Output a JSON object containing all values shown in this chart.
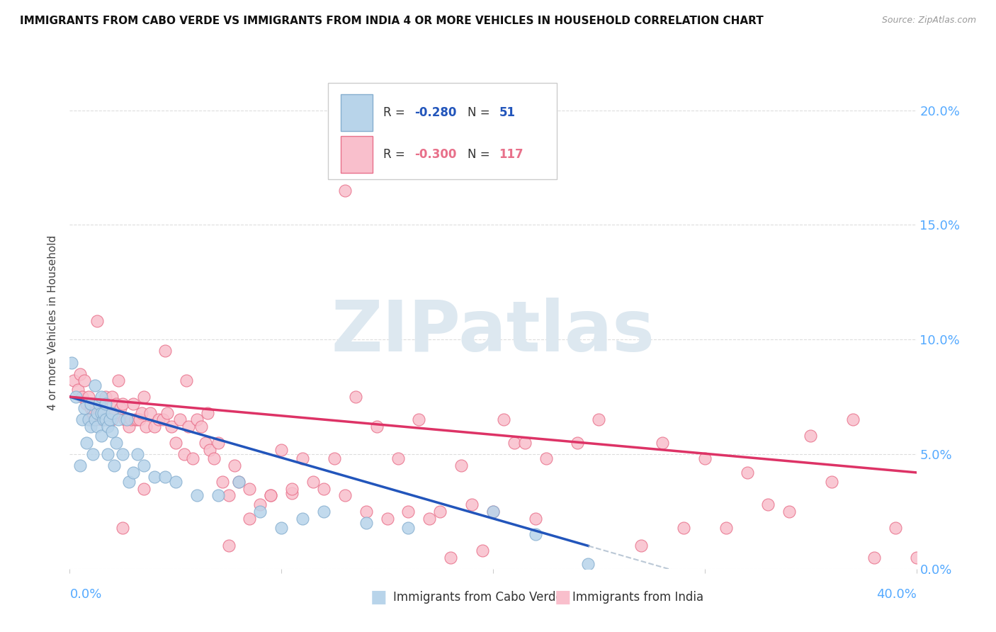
{
  "title": "IMMIGRANTS FROM CABO VERDE VS IMMIGRANTS FROM INDIA 4 OR MORE VEHICLES IN HOUSEHOLD CORRELATION CHART",
  "source": "Source: ZipAtlas.com",
  "ylabel": "4 or more Vehicles in Household",
  "ytick_values": [
    0.0,
    0.05,
    0.1,
    0.15,
    0.2
  ],
  "xlim": [
    0.0,
    0.4
  ],
  "ylim": [
    0.0,
    0.215
  ],
  "cabo_verde_color": "#b8d4ea",
  "cabo_verde_edge": "#85aecf",
  "india_color": "#f9bfcc",
  "india_edge": "#e8708a",
  "cabo_verde_R": -0.28,
  "cabo_verde_N": 51,
  "india_R": -0.3,
  "india_N": 117,
  "cabo_verde_line_color": "#2255bb",
  "india_line_color": "#dd3366",
  "watermark_text": "ZIPatlas",
  "cabo_verde_trend_x0": 0.0,
  "cabo_verde_trend_y0": 0.075,
  "cabo_verde_trend_x1": 0.245,
  "cabo_verde_trend_y1": 0.01,
  "india_trend_x0": 0.0,
  "india_trend_y0": 0.075,
  "india_trend_x1": 0.4,
  "india_trend_y1": 0.042,
  "cabo_verde_x": [
    0.001,
    0.003,
    0.005,
    0.006,
    0.007,
    0.008,
    0.009,
    0.01,
    0.01,
    0.011,
    0.012,
    0.012,
    0.013,
    0.013,
    0.014,
    0.015,
    0.015,
    0.015,
    0.016,
    0.016,
    0.017,
    0.017,
    0.018,
    0.018,
    0.019,
    0.02,
    0.02,
    0.021,
    0.022,
    0.023,
    0.025,
    0.027,
    0.028,
    0.03,
    0.032,
    0.035,
    0.04,
    0.045,
    0.05,
    0.06,
    0.07,
    0.08,
    0.09,
    0.1,
    0.11,
    0.12,
    0.14,
    0.16,
    0.2,
    0.22,
    0.245
  ],
  "cabo_verde_y": [
    0.09,
    0.075,
    0.045,
    0.065,
    0.07,
    0.055,
    0.065,
    0.062,
    0.072,
    0.05,
    0.065,
    0.08,
    0.062,
    0.068,
    0.072,
    0.068,
    0.058,
    0.075,
    0.065,
    0.068,
    0.065,
    0.072,
    0.05,
    0.062,
    0.065,
    0.06,
    0.068,
    0.045,
    0.055,
    0.065,
    0.05,
    0.065,
    0.038,
    0.042,
    0.05,
    0.045,
    0.04,
    0.04,
    0.038,
    0.032,
    0.032,
    0.038,
    0.025,
    0.018,
    0.022,
    0.025,
    0.02,
    0.018,
    0.025,
    0.015,
    0.002
  ],
  "india_x": [
    0.002,
    0.004,
    0.005,
    0.006,
    0.007,
    0.008,
    0.009,
    0.01,
    0.01,
    0.011,
    0.012,
    0.013,
    0.014,
    0.015,
    0.015,
    0.016,
    0.017,
    0.018,
    0.019,
    0.02,
    0.02,
    0.021,
    0.022,
    0.023,
    0.024,
    0.025,
    0.026,
    0.027,
    0.028,
    0.029,
    0.03,
    0.031,
    0.032,
    0.033,
    0.034,
    0.035,
    0.036,
    0.038,
    0.04,
    0.042,
    0.044,
    0.046,
    0.048,
    0.05,
    0.052,
    0.054,
    0.056,
    0.058,
    0.06,
    0.062,
    0.064,
    0.066,
    0.068,
    0.07,
    0.072,
    0.075,
    0.078,
    0.08,
    0.085,
    0.09,
    0.095,
    0.1,
    0.105,
    0.11,
    0.12,
    0.13,
    0.14,
    0.15,
    0.16,
    0.17,
    0.18,
    0.19,
    0.2,
    0.21,
    0.22,
    0.24,
    0.25,
    0.27,
    0.28,
    0.29,
    0.3,
    0.31,
    0.32,
    0.33,
    0.34,
    0.35,
    0.36,
    0.37,
    0.38,
    0.39,
    0.4,
    0.13,
    0.045,
    0.055,
    0.065,
    0.035,
    0.025,
    0.075,
    0.085,
    0.095,
    0.105,
    0.115,
    0.125,
    0.135,
    0.145,
    0.155,
    0.165,
    0.175,
    0.185,
    0.195,
    0.205,
    0.215,
    0.225
  ],
  "india_y": [
    0.082,
    0.078,
    0.085,
    0.075,
    0.082,
    0.072,
    0.075,
    0.07,
    0.065,
    0.068,
    0.065,
    0.108,
    0.068,
    0.072,
    0.065,
    0.065,
    0.075,
    0.065,
    0.068,
    0.075,
    0.065,
    0.068,
    0.072,
    0.082,
    0.07,
    0.072,
    0.065,
    0.065,
    0.062,
    0.065,
    0.072,
    0.065,
    0.065,
    0.065,
    0.068,
    0.075,
    0.062,
    0.068,
    0.062,
    0.065,
    0.065,
    0.068,
    0.062,
    0.055,
    0.065,
    0.05,
    0.062,
    0.048,
    0.065,
    0.062,
    0.055,
    0.052,
    0.048,
    0.055,
    0.038,
    0.032,
    0.045,
    0.038,
    0.035,
    0.028,
    0.032,
    0.052,
    0.033,
    0.048,
    0.035,
    0.032,
    0.025,
    0.022,
    0.025,
    0.022,
    0.005,
    0.028,
    0.025,
    0.055,
    0.022,
    0.055,
    0.065,
    0.01,
    0.055,
    0.018,
    0.048,
    0.018,
    0.042,
    0.028,
    0.025,
    0.058,
    0.038,
    0.065,
    0.005,
    0.018,
    0.005,
    0.165,
    0.095,
    0.082,
    0.068,
    0.035,
    0.018,
    0.01,
    0.022,
    0.032,
    0.035,
    0.038,
    0.048,
    0.075,
    0.062,
    0.048,
    0.065,
    0.025,
    0.045,
    0.008,
    0.065,
    0.055,
    0.048
  ]
}
